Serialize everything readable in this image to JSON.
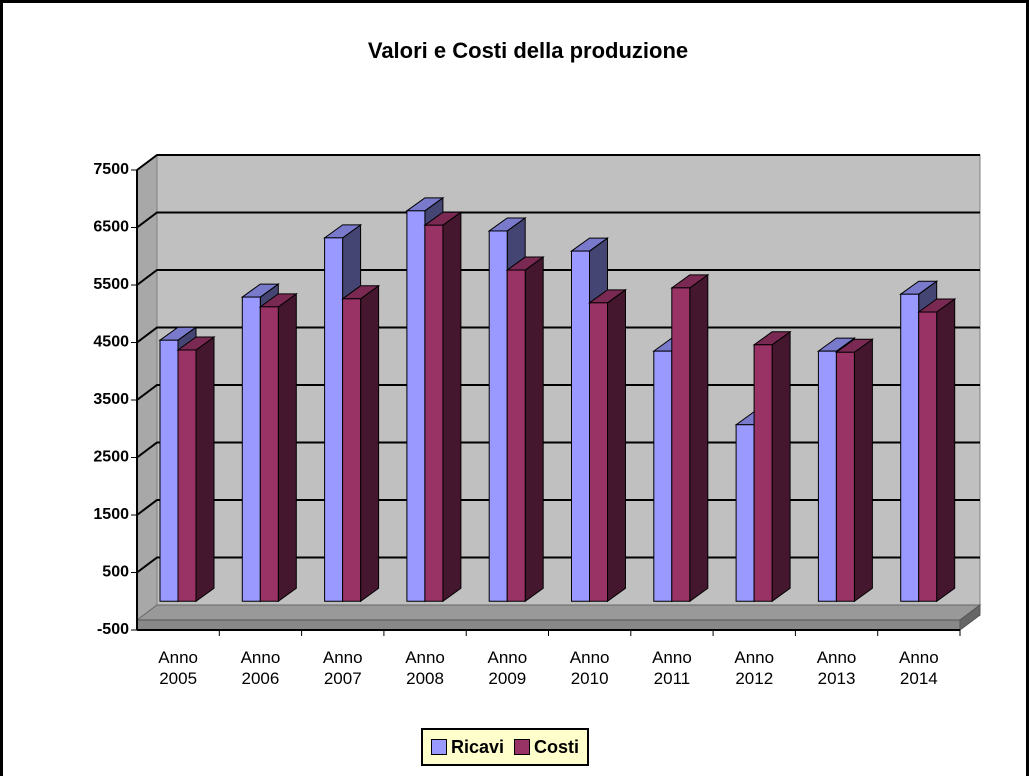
{
  "chart_data": {
    "type": "bar3d",
    "title": "Valori e Costi della produzione",
    "categories": [
      "Anno 2005",
      "Anno 2006",
      "Anno 2007",
      "Anno 2008",
      "Anno 2009",
      "Anno 2010",
      "Anno 2011",
      "Anno 2012",
      "Anno 2013",
      "Anno 2014"
    ],
    "series": [
      {
        "name": "Ricavi",
        "color": "#9999ff",
        "values": [
          4540,
          5290,
          6320,
          6790,
          6440,
          6090,
          4350,
          3070,
          4350,
          5340
        ]
      },
      {
        "name": "Costi",
        "color": "#993366",
        "values": [
          4370,
          5120,
          5260,
          6540,
          5760,
          5190,
          5450,
          4460,
          4330,
          5030
        ]
      }
    ],
    "ylim": [
      -500,
      7500
    ],
    "yticks": [
      -500,
      500,
      1500,
      2500,
      3500,
      4500,
      5500,
      6500,
      7500
    ],
    "grid": true,
    "legend": "bottom"
  }
}
